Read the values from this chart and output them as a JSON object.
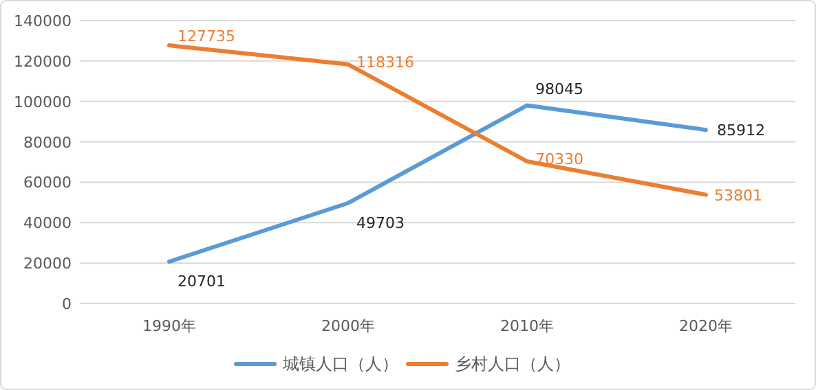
{
  "chart_data": {
    "type": "line",
    "categories": [
      "1990年",
      "2000年",
      "2010年",
      "2020年"
    ],
    "series": [
      {
        "name": "城镇人口（人）",
        "color": "#5b9bd5",
        "values": [
          20701,
          49703,
          98045,
          85912
        ]
      },
      {
        "name": "乡村人口（人）",
        "color": "#ed7d31",
        "values": [
          127735,
          118316,
          70330,
          53801
        ]
      }
    ],
    "ylim": [
      0,
      140000
    ],
    "yticks": [
      0,
      20000,
      40000,
      60000,
      80000,
      100000,
      120000,
      140000
    ],
    "grid": "y",
    "legend": "bottom",
    "data_labels": true,
    "marker": "none",
    "line_style": "solid"
  }
}
